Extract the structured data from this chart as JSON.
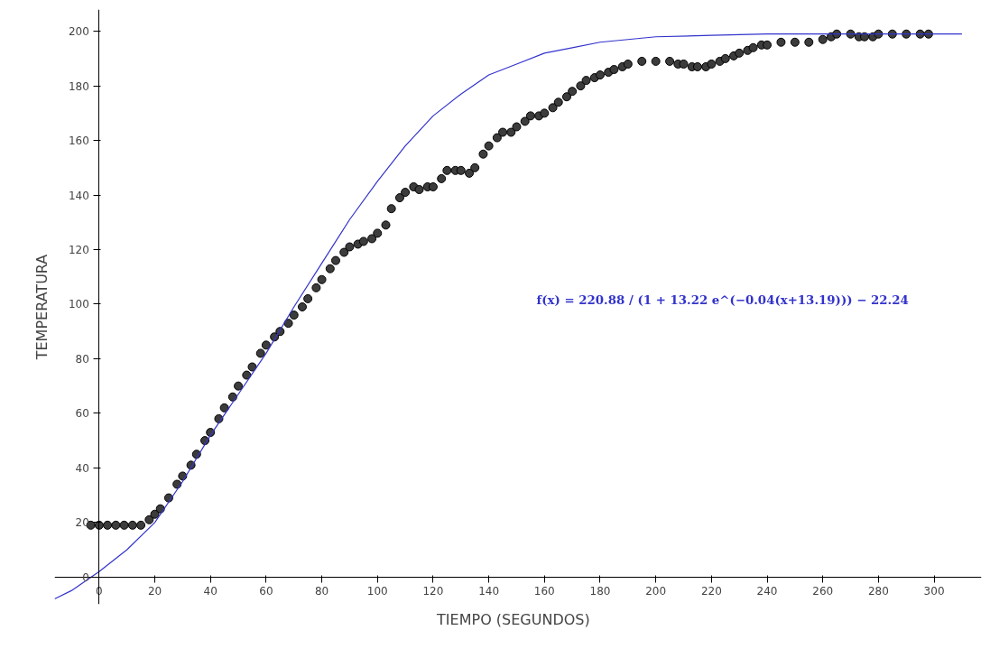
{
  "chart_data": {
    "type": "scatter",
    "xlabel": "TIEMPO   (SEGUNDOS)",
    "ylabel": "TEMPERATURA",
    "xlim": [
      -16,
      317
    ],
    "ylim": [
      -10,
      208
    ],
    "xticks": [
      0,
      20,
      40,
      60,
      80,
      100,
      120,
      140,
      160,
      180,
      200,
      220,
      240,
      260,
      280,
      300
    ],
    "yticks": [
      0,
      20,
      40,
      60,
      80,
      100,
      120,
      140,
      160,
      180,
      200
    ],
    "grid": false,
    "marker": "circle",
    "series": [
      {
        "color": "#3c3c3c",
        "x": [
          -3,
          0,
          3,
          6,
          9,
          12,
          15,
          18,
          20,
          22,
          25,
          28,
          30,
          33,
          35,
          38,
          40,
          43,
          45,
          48,
          50,
          53,
          55,
          58,
          60,
          63,
          65,
          68,
          70,
          73,
          75,
          78,
          80,
          83,
          85,
          88,
          90,
          93,
          95,
          98,
          100,
          103,
          105,
          108,
          110,
          113,
          115,
          118,
          120,
          123,
          125,
          128,
          130,
          133,
          135,
          138,
          140,
          143,
          145,
          148,
          150,
          153,
          155,
          158,
          160,
          163,
          165,
          168,
          170,
          173,
          175,
          178,
          180,
          183,
          185,
          188,
          190,
          195,
          200,
          205,
          208,
          210,
          213,
          215,
          218,
          220,
          223,
          225,
          228,
          230,
          233,
          235,
          238,
          240,
          245,
          250,
          255,
          260,
          263,
          265,
          270,
          273,
          275,
          278,
          280,
          285,
          290,
          295,
          298
        ],
        "values": [
          19,
          19,
          19,
          19,
          19,
          19,
          19,
          21,
          23,
          25,
          29,
          34,
          37,
          41,
          45,
          50,
          53,
          58,
          62,
          66,
          70,
          74,
          77,
          82,
          85,
          88,
          90,
          93,
          96,
          99,
          102,
          106,
          109,
          113,
          116,
          119,
          121,
          122,
          123,
          124,
          126,
          129,
          135,
          139,
          141,
          143,
          142,
          143,
          143,
          146,
          149,
          149,
          149,
          148,
          150,
          155,
          158,
          161,
          163,
          163,
          165,
          167,
          169,
          169,
          170,
          172,
          174,
          176,
          178,
          180,
          182,
          183,
          184,
          185,
          186,
          187,
          188,
          189,
          189,
          189,
          188,
          188,
          187,
          187,
          187,
          188,
          189,
          190,
          191,
          192,
          193,
          194,
          195,
          195,
          196,
          196,
          196,
          197,
          198,
          199,
          199,
          198,
          198,
          198,
          199,
          199,
          199,
          199,
          199
        ]
      },
      {
        "type": "line",
        "name": "f(x) = 220.88 / (1 + 13.22 e^(−0.04(x+13.19))) − 22.24",
        "color": "#3333cc",
        "marker": "none",
        "x": [
          -16,
          -10,
          0,
          10,
          20,
          30,
          40,
          50,
          60,
          70,
          80,
          90,
          100,
          110,
          120,
          130,
          140,
          150,
          160,
          170,
          180,
          200,
          220,
          240,
          270,
          310
        ],
        "values": [
          -8,
          -5,
          2,
          10,
          20,
          35,
          52,
          67,
          82,
          99,
          115,
          131,
          145,
          158,
          169,
          177,
          184,
          188,
          192,
          194,
          196,
          198,
          198.5,
          199,
          199,
          199
        ]
      }
    ]
  }
}
